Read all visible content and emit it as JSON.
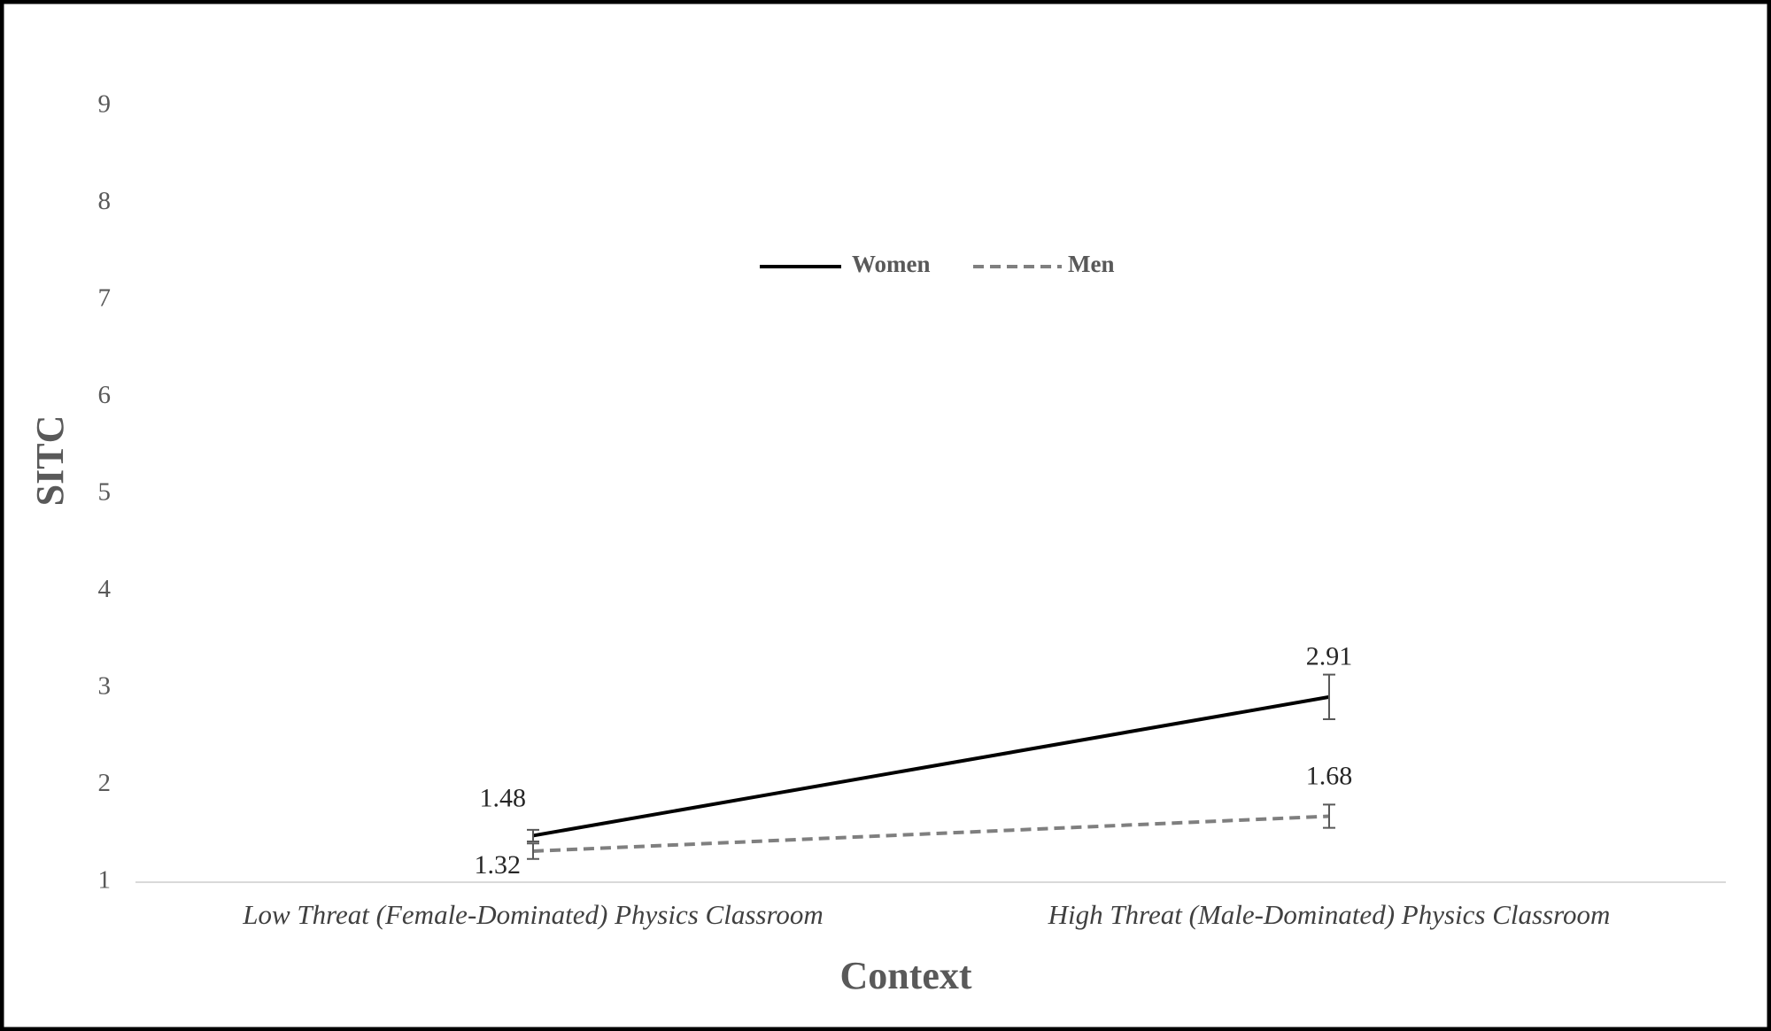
{
  "chart_data": {
    "type": "line",
    "x_label": "Context",
    "y_label": "SITC",
    "categories": [
      "Low Threat (Female-Dominated) Physics Classroom",
      "High Threat (Male-Dominated) Physics Classroom"
    ],
    "series": [
      {
        "name": "Women",
        "color": "#000000",
        "dash": false,
        "values": [
          1.48,
          2.91
        ],
        "errors": [
          0.06,
          0.23
        ]
      },
      {
        "name": "Men",
        "color": "#7f7f7f",
        "dash": true,
        "values": [
          1.32,
          1.68
        ],
        "errors": [
          0.08,
          0.12
        ]
      }
    ],
    "ylim": [
      1,
      9
    ],
    "yticks": [
      1,
      2,
      3,
      4,
      5,
      6,
      7,
      8,
      9
    ],
    "legend": "top"
  }
}
